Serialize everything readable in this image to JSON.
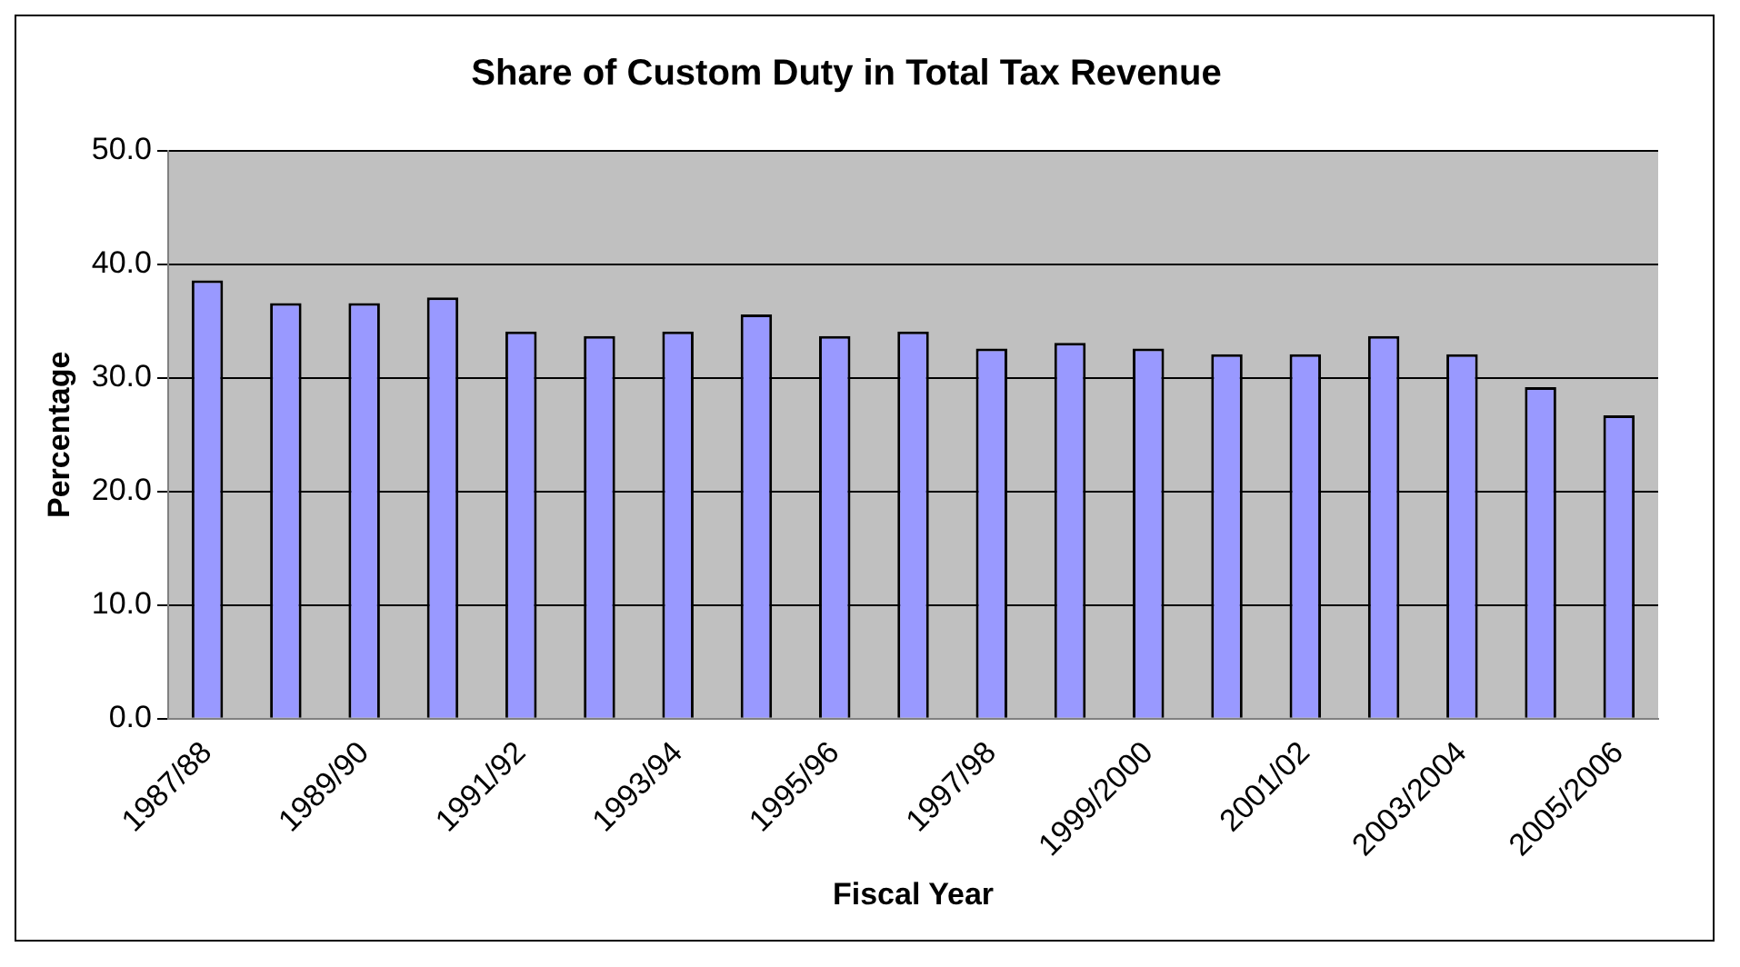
{
  "chart_data": {
    "type": "bar",
    "title": "Share of Custom Duty in Total Tax Revenue",
    "xlabel": "Fiscal Year",
    "ylabel": "Percentage",
    "categories": [
      "1987/88",
      null,
      "1989/90",
      null,
      "1991/92",
      null,
      "1993/94",
      null,
      "1995/96",
      null,
      "1997/98",
      null,
      "1999/2000",
      null,
      "2001/02",
      null,
      "2003/2004",
      null,
      "2005/2006"
    ],
    "values": [
      38.6,
      36.6,
      36.6,
      37.1,
      34.1,
      33.7,
      34.1,
      35.6,
      33.7,
      34.1,
      32.6,
      33.1,
      32.6,
      32.1,
      32.1,
      33.7,
      32.1,
      29.2,
      26.7
    ],
    "color": "#9999ff",
    "ylim": [
      0,
      50
    ],
    "yticks": [
      {
        "value": 0,
        "label": "0.0"
      },
      {
        "value": 10,
        "label": "10.0"
      },
      {
        "value": 20,
        "label": "20.0"
      },
      {
        "value": 30,
        "label": "30.0"
      },
      {
        "value": 40,
        "label": "40.0"
      },
      {
        "value": 50,
        "label": "50.0"
      }
    ],
    "grid": "y"
  }
}
